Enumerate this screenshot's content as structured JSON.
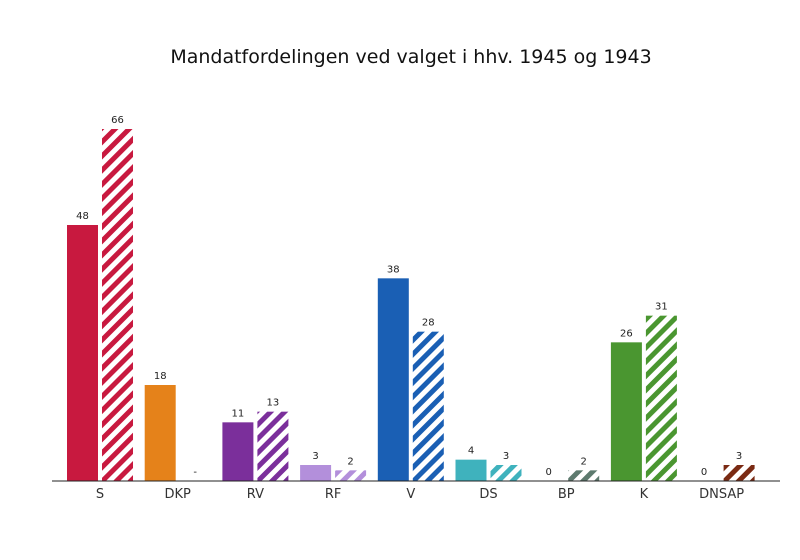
{
  "chart_data": {
    "type": "bar",
    "title": "Mandatfordelingen ved valget i hhv. 1945 og 1943",
    "xlabel": "",
    "ylabel": "",
    "ylim": [
      0,
      66
    ],
    "grid": false,
    "legend": "none",
    "categories": [
      "S",
      "DKP",
      "RV",
      "RF",
      "V",
      "DS",
      "BP",
      "K",
      "DNSAP"
    ],
    "colors": [
      "#c8193f",
      "#e5821a",
      "#7b2f9b",
      "#b38fdb",
      "#1a5fb4",
      "#3fb2bd",
      "#5d7a6e",
      "#4a9630",
      "#7a2a13"
    ],
    "series": [
      {
        "values": [
          48,
          18,
          11,
          3,
          38,
          4,
          0,
          26,
          0
        ],
        "labels": [
          "48",
          "18",
          "11",
          "3",
          "38",
          "4",
          "0",
          "26",
          "0"
        ],
        "style": "solid"
      },
      {
        "values": [
          66,
          null,
          13,
          2,
          28,
          3,
          2,
          31,
          3
        ],
        "labels": [
          "66",
          "-",
          "13",
          "2",
          "28",
          "3",
          "2",
          "31",
          "3"
        ],
        "style": "hatched"
      }
    ]
  }
}
